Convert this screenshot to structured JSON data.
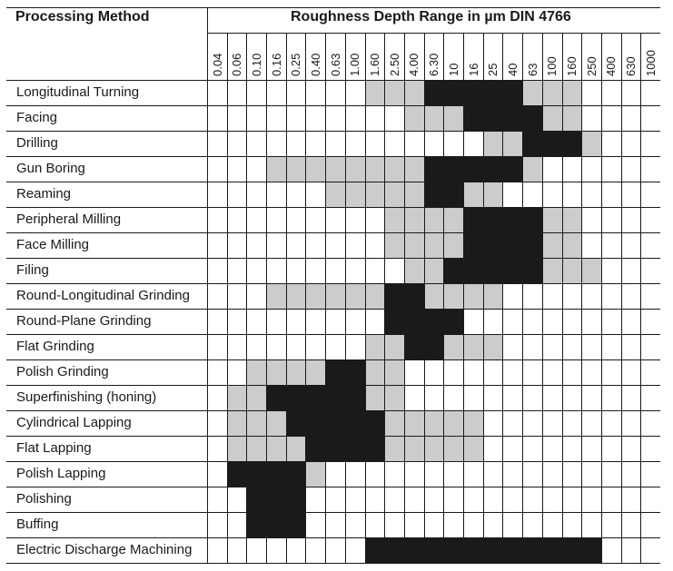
{
  "table": {
    "method_header": "Processing Method",
    "range_header": "Roughness Depth Range in µm DIN 4766",
    "columns": [
      "0.04",
      "0.06",
      "0.10",
      "0.16",
      "0.25",
      "0.40",
      "0.63",
      "1.00",
      "1.60",
      "2.50",
      "4.00",
      "6.30",
      "10",
      "16",
      "25",
      "40",
      "63",
      "100",
      "160",
      "250",
      "400",
      "630",
      "1000"
    ],
    "legend_codes": {
      "0": "empty",
      "1": "gray",
      "2": "black"
    },
    "colors": {
      "gray": "#cccccc",
      "black": "#1a1a1a",
      "line": "#1a1a1a",
      "background": "#ffffff"
    },
    "rows": [
      {
        "method": "Longitudinal Turning",
        "cells": "00000000111222221110000"
      },
      {
        "method": "Facing",
        "cells": "00000000001112222110000"
      },
      {
        "method": "Drilling",
        "cells": "00000000000000112221000"
      },
      {
        "method": "Gun Boring",
        "cells": "00011111111222221000000"
      },
      {
        "method": "Reaming",
        "cells": "00000011111221100000000"
      },
      {
        "method": "Peripheral Milling",
        "cells": "00000000011112222110000"
      },
      {
        "method": "Face Milling",
        "cells": "00000000011112222110000"
      },
      {
        "method": "Filing",
        "cells": "00000000001122222111000"
      },
      {
        "method": "Round-Longitudinal Grinding",
        "cells": "00011111122111100000000"
      },
      {
        "method": "Round-Plane Grinding",
        "cells": "00000000022220000000000"
      },
      {
        "method": "Flat Grinding",
        "cells": "00000000112211100000000"
      },
      {
        "method": "Polish Grinding",
        "cells": "00111122110000000000000"
      },
      {
        "method": "Superfinishing (honing)",
        "cells": "01122222110000000000000"
      },
      {
        "method": "Cylindrical Lapping",
        "cells": "01112222211111000000000"
      },
      {
        "method": "Flat Lapping",
        "cells": "01111222211111000000000"
      },
      {
        "method": "Polish Lapping",
        "cells": "02222100000000000000000"
      },
      {
        "method": "Polishing",
        "cells": "00222000000000000000000"
      },
      {
        "method": "Buffing",
        "cells": "00222000000000000000000"
      },
      {
        "method": "Electric Discharge Machining",
        "cells": "00000000222222222222000"
      }
    ]
  }
}
